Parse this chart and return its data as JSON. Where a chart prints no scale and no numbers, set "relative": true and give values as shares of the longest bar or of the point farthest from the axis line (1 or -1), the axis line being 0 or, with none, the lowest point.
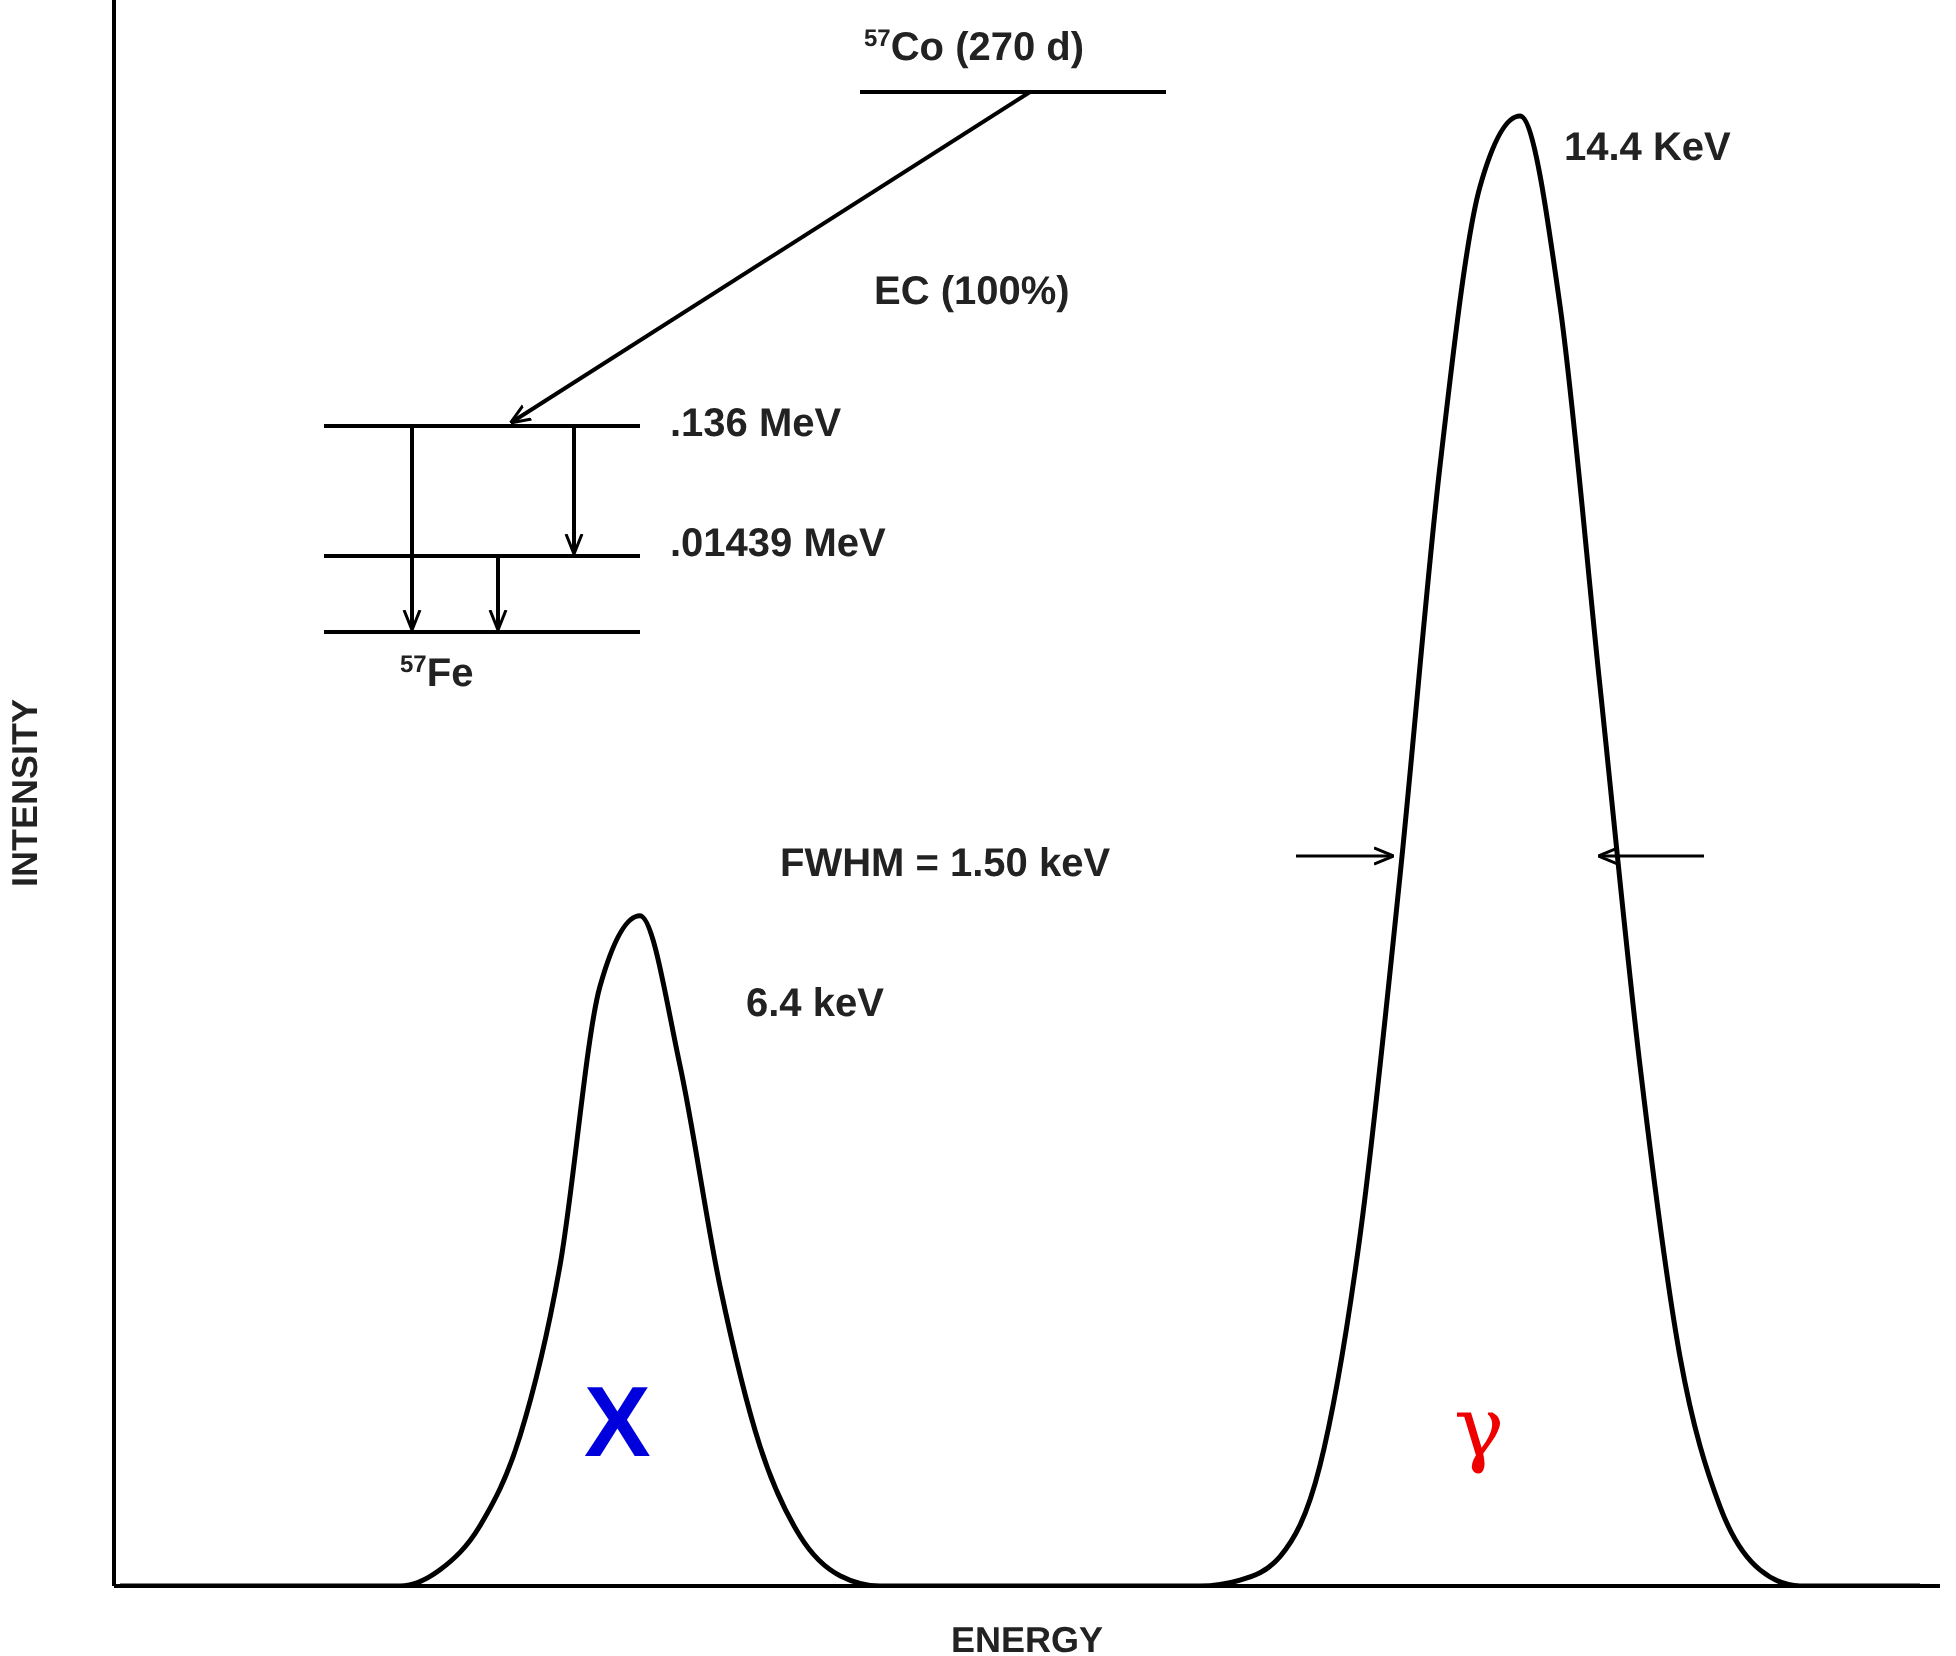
{
  "chart_data": {
    "type": "line",
    "xlabel": "ENERGY",
    "ylabel": "INTENSITY",
    "relative": true,
    "categories": [
      null,
      null,
      null,
      null,
      null,
      null,
      null,
      null,
      null,
      null,
      null,
      null,
      null,
      null,
      null,
      null,
      null,
      null,
      null,
      null,
      null,
      null,
      null,
      null,
      null,
      null,
      null,
      null,
      null,
      null,
      null,
      null,
      null,
      null,
      null,
      null,
      null,
      null,
      null,
      null,
      null,
      null,
      null,
      null,
      null,
      null
    ],
    "series": [
      {
        "color": "#000000",
        "values": [
          0,
          0,
          0,
          0,
          0,
          0,
          0,
          0,
          0.011,
          0.041,
          0.102,
          0.218,
          0.408,
          0.456,
          0.354,
          0.204,
          0.095,
          0.034,
          0.007,
          0,
          0,
          0,
          0,
          0,
          0,
          0,
          0,
          0,
          0.004,
          0.02,
          0.082,
          0.238,
          0.483,
          0.762,
          0.952,
          1,
          0.871,
          0.612,
          0.354,
          0.156,
          0.054,
          0.011,
          0,
          0,
          0,
          0
        ]
      }
    ],
    "annotations": [
      "$^{57}$Co (270 d)",
      "EC (100%)",
      ".136 MeV",
      ".01439 MeV",
      "$^{57}$Fe",
      "14.4 KeV",
      "6.4 keV",
      "FWHM = 1.50 keV",
      "X",
      "γ"
    ]
  }
}
